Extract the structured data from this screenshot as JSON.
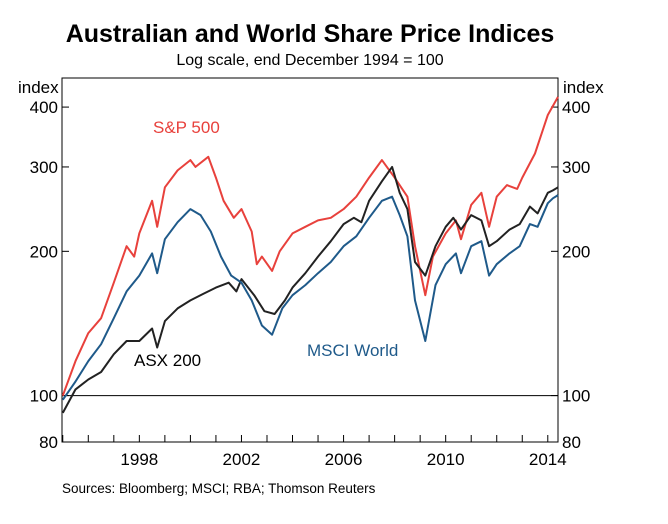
{
  "chart_data": {
    "type": "line",
    "title": "Australian and World Share Price Indices",
    "subtitle": "Log scale, end December 1994 = 100",
    "ylabel_left": "index",
    "ylabel_right": "index",
    "yscale": "log",
    "ylim": [
      80,
      460
    ],
    "yticks": [
      80,
      100,
      200,
      300,
      400
    ],
    "xlim": [
      1994.97,
      2014.4
    ],
    "xticks": [
      1998,
      2002,
      2006,
      2010,
      2014
    ],
    "source": "Sources:   Bloomberg; MSCI; RBA; Thomson Reuters",
    "reference_line": 100,
    "series": [
      {
        "name": "S&P 500",
        "color": "#e8413c",
        "points": [
          [
            1995.0,
            100
          ],
          [
            1995.5,
            118
          ],
          [
            1996.0,
            135
          ],
          [
            1996.5,
            145
          ],
          [
            1997.0,
            172
          ],
          [
            1997.5,
            205
          ],
          [
            1997.8,
            195
          ],
          [
            1998.0,
            218
          ],
          [
            1998.5,
            255
          ],
          [
            1998.7,
            225
          ],
          [
            1999.0,
            272
          ],
          [
            1999.5,
            295
          ],
          [
            2000.0,
            310
          ],
          [
            2000.2,
            300
          ],
          [
            2000.7,
            315
          ],
          [
            2001.0,
            285
          ],
          [
            2001.3,
            255
          ],
          [
            2001.7,
            235
          ],
          [
            2002.0,
            245
          ],
          [
            2002.4,
            220
          ],
          [
            2002.6,
            188
          ],
          [
            2002.8,
            195
          ],
          [
            2003.2,
            182
          ],
          [
            2003.5,
            200
          ],
          [
            2004.0,
            218
          ],
          [
            2004.5,
            225
          ],
          [
            2005.0,
            232
          ],
          [
            2005.5,
            235
          ],
          [
            2006.0,
            245
          ],
          [
            2006.5,
            260
          ],
          [
            2007.0,
            285
          ],
          [
            2007.5,
            310
          ],
          [
            2008.0,
            285
          ],
          [
            2008.5,
            260
          ],
          [
            2008.8,
            205
          ],
          [
            2009.2,
            162
          ],
          [
            2009.5,
            195
          ],
          [
            2010.0,
            218
          ],
          [
            2010.4,
            232
          ],
          [
            2010.6,
            212
          ],
          [
            2011.0,
            250
          ],
          [
            2011.4,
            265
          ],
          [
            2011.7,
            225
          ],
          [
            2012.0,
            260
          ],
          [
            2012.4,
            275
          ],
          [
            2012.8,
            270
          ],
          [
            2013.0,
            285
          ],
          [
            2013.5,
            320
          ],
          [
            2014.0,
            385
          ],
          [
            2014.4,
            420
          ]
        ]
      },
      {
        "name": "ASX 200",
        "color": "#222222",
        "points": [
          [
            1995.0,
            92
          ],
          [
            1995.5,
            103
          ],
          [
            1996.0,
            108
          ],
          [
            1996.5,
            112
          ],
          [
            1997.0,
            122
          ],
          [
            1997.5,
            130
          ],
          [
            1998.0,
            130
          ],
          [
            1998.5,
            138
          ],
          [
            1998.7,
            126
          ],
          [
            1999.0,
            143
          ],
          [
            1999.5,
            152
          ],
          [
            2000.0,
            158
          ],
          [
            2000.5,
            163
          ],
          [
            2001.0,
            168
          ],
          [
            2001.5,
            172
          ],
          [
            2001.8,
            165
          ],
          [
            2002.0,
            175
          ],
          [
            2002.5,
            162
          ],
          [
            2002.9,
            150
          ],
          [
            2003.3,
            148
          ],
          [
            2003.7,
            158
          ],
          [
            2004.0,
            168
          ],
          [
            2004.5,
            180
          ],
          [
            2005.0,
            195
          ],
          [
            2005.5,
            210
          ],
          [
            2006.0,
            228
          ],
          [
            2006.4,
            235
          ],
          [
            2006.7,
            230
          ],
          [
            2007.0,
            255
          ],
          [
            2007.5,
            280
          ],
          [
            2007.9,
            300
          ],
          [
            2008.2,
            265
          ],
          [
            2008.5,
            245
          ],
          [
            2008.8,
            190
          ],
          [
            2009.2,
            178
          ],
          [
            2009.6,
            205
          ],
          [
            2010.0,
            225
          ],
          [
            2010.3,
            235
          ],
          [
            2010.6,
            222
          ],
          [
            2011.0,
            238
          ],
          [
            2011.4,
            232
          ],
          [
            2011.7,
            205
          ],
          [
            2012.0,
            210
          ],
          [
            2012.5,
            222
          ],
          [
            2012.9,
            228
          ],
          [
            2013.3,
            248
          ],
          [
            2013.6,
            240
          ],
          [
            2014.0,
            265
          ],
          [
            2014.2,
            268
          ],
          [
            2014.4,
            272
          ]
        ]
      },
      {
        "name": "MSCI World",
        "color": "#1f5a8a",
        "points": [
          [
            1995.0,
            98
          ],
          [
            1995.5,
            107
          ],
          [
            1996.0,
            118
          ],
          [
            1996.5,
            128
          ],
          [
            1997.0,
            145
          ],
          [
            1997.5,
            165
          ],
          [
            1998.0,
            178
          ],
          [
            1998.5,
            198
          ],
          [
            1998.7,
            180
          ],
          [
            1999.0,
            212
          ],
          [
            1999.5,
            230
          ],
          [
            2000.0,
            245
          ],
          [
            2000.4,
            238
          ],
          [
            2000.8,
            220
          ],
          [
            2001.2,
            195
          ],
          [
            2001.6,
            178
          ],
          [
            2002.0,
            172
          ],
          [
            2002.4,
            158
          ],
          [
            2002.8,
            140
          ],
          [
            2003.2,
            134
          ],
          [
            2003.6,
            152
          ],
          [
            2004.0,
            162
          ],
          [
            2004.5,
            170
          ],
          [
            2005.0,
            180
          ],
          [
            2005.5,
            190
          ],
          [
            2006.0,
            205
          ],
          [
            2006.5,
            215
          ],
          [
            2007.0,
            235
          ],
          [
            2007.5,
            255
          ],
          [
            2007.9,
            260
          ],
          [
            2008.2,
            238
          ],
          [
            2008.5,
            215
          ],
          [
            2008.8,
            158
          ],
          [
            2009.2,
            130
          ],
          [
            2009.6,
            170
          ],
          [
            2010.0,
            188
          ],
          [
            2010.4,
            198
          ],
          [
            2010.6,
            180
          ],
          [
            2011.0,
            205
          ],
          [
            2011.4,
            210
          ],
          [
            2011.7,
            178
          ],
          [
            2012.0,
            188
          ],
          [
            2012.5,
            198
          ],
          [
            2012.9,
            205
          ],
          [
            2013.3,
            228
          ],
          [
            2013.6,
            225
          ],
          [
            2014.0,
            252
          ],
          [
            2014.2,
            258
          ],
          [
            2014.4,
            262
          ]
        ]
      }
    ],
    "series_labels": [
      "S&P 500",
      "ASX 200",
      "MSCI World"
    ]
  }
}
